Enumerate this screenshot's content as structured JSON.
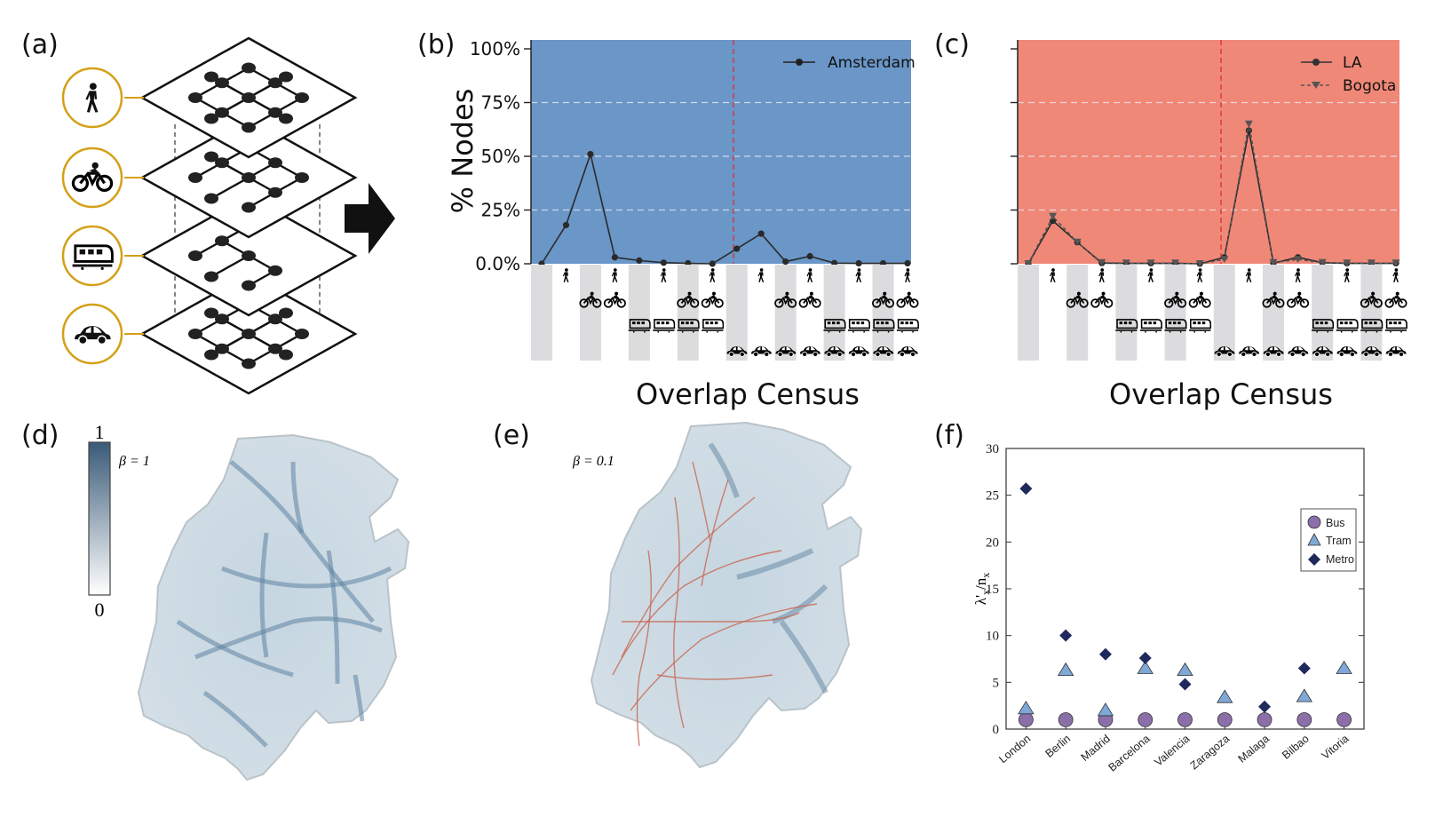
{
  "panels": {
    "a": "(a)",
    "b": "(b)",
    "c": "(c)",
    "d": "(d)",
    "e": "(e)",
    "f": "(f)"
  },
  "layers": [
    {
      "mode": "walk",
      "icon": "walking-person-icon"
    },
    {
      "mode": "bike",
      "icon": "bicycle-icon"
    },
    {
      "mode": "rail",
      "icon": "train-icon"
    },
    {
      "mode": "car",
      "icon": "car-icon"
    }
  ],
  "census_codes": [
    "",
    "W",
    "B",
    "WB",
    "R",
    "WR",
    "BR",
    "WBR",
    "C",
    "WC",
    "BC",
    "WBC",
    "RC",
    "WRC",
    "BRC",
    "WBRC"
  ],
  "chart_b": {
    "type": "line",
    "ylabel": "% Nodes",
    "xlabel": "Overlap Census",
    "yticks": [
      "0.0%",
      "25%",
      "50%",
      "75%",
      "100%"
    ],
    "ylim": [
      0,
      100
    ],
    "background": "#6a96c8",
    "legend_position": "top-right",
    "series": [
      {
        "name": "Amsterdam",
        "values": [
          0,
          18,
          51,
          3,
          1.5,
          0.5,
          0.2,
          0,
          7,
          14,
          1,
          3.5,
          0.3,
          0.2,
          0.2,
          0.2
        ]
      }
    ]
  },
  "chart_c": {
    "type": "line",
    "xlabel": "Overlap Census",
    "ylim": [
      0,
      100
    ],
    "background": "#f08878",
    "legend_position": "top-right",
    "series": [
      {
        "name": "LA",
        "marker": "circle",
        "values": [
          0,
          20,
          10,
          0.3,
          0.2,
          0.2,
          0.2,
          0,
          3,
          62,
          0.3,
          3,
          0.5,
          0.2,
          0.2,
          0.2
        ]
      },
      {
        "name": "Bogota",
        "marker": "triangle-down",
        "values": [
          0,
          22,
          10,
          0.5,
          0.3,
          0.3,
          0.3,
          0,
          2,
          65,
          0.5,
          2,
          0.5,
          0.3,
          0.3,
          0.3
        ]
      }
    ]
  },
  "map_d": {
    "colorbar_max": "1",
    "colorbar_min": "0",
    "beta_label": "β = 1"
  },
  "map_e": {
    "beta_label": "β = 0.1"
  },
  "chart_f": {
    "type": "scatter",
    "ylabel_main": "λ'",
    "ylabel_sub1": "x",
    "ylabel_slash": "/n",
    "ylabel_sub2": "x",
    "ylim": [
      0,
      30
    ],
    "yticks": [
      "0",
      "5",
      "10",
      "15",
      "20",
      "25",
      "30"
    ],
    "legend_position": "top-right",
    "categories": [
      "London",
      "Berlin",
      "Madrid",
      "Barcelona",
      "Valencia",
      "Zaragoza",
      "Malaga",
      "Bilbao",
      "Vitoria"
    ],
    "series": [
      {
        "name": "Bus",
        "marker": "circle",
        "color": "#8a6fa8",
        "values": [
          1,
          1,
          1,
          1,
          1,
          1,
          1,
          1,
          1
        ]
      },
      {
        "name": "Tram",
        "marker": "triangle",
        "color": "#7fa8d6",
        "values": [
          2.2,
          6.3,
          2,
          6.5,
          6.3,
          3.4,
          null,
          3.5,
          6.5
        ]
      },
      {
        "name": "Metro",
        "marker": "diamond",
        "color": "#1f2a5c",
        "values": [
          25.7,
          10,
          8,
          7.6,
          4.8,
          null,
          2.4,
          6.5,
          null
        ]
      }
    ]
  }
}
